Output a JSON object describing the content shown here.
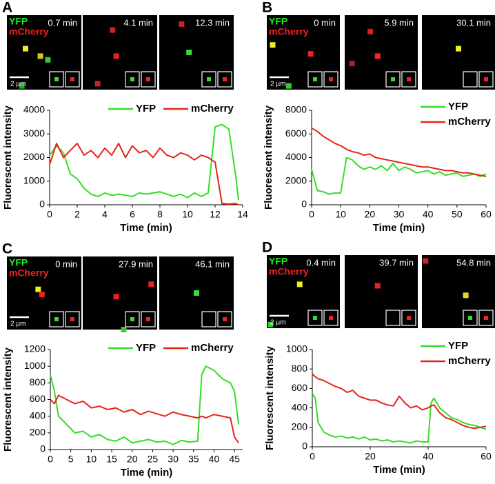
{
  "panels": [
    {
      "label": "A",
      "image_times": [
        "0.7 min",
        "4.1 min",
        "12.3 min"
      ],
      "channel_labels": [
        "YFP",
        "mCherry"
      ],
      "scale_bar": "2 µm"
    },
    {
      "label": "B",
      "image_times": [
        "0 min",
        "5.9 min",
        "30.1 min"
      ],
      "channel_labels": [
        "YFP",
        "mCherry"
      ],
      "scale_bar": "2 µm"
    },
    {
      "label": "C",
      "image_times": [
        "0 min",
        "27.9 min",
        "46.1 min"
      ],
      "channel_labels": [
        "YFP",
        "mCherry"
      ],
      "scale_bar": "2 µm"
    },
    {
      "label": "D",
      "image_times": [
        "0.4 min",
        "39.7 min",
        "54.8 min"
      ],
      "channel_labels": [
        "YFP",
        "mCherry"
      ],
      "scale_bar": "2 µm"
    }
  ],
  "chart_data": [
    {
      "type": "line",
      "xlabel": "Time (min)",
      "ylabel": "Fluorescent intensity",
      "legend": "top",
      "x": [
        0,
        0.5,
        1,
        1.5,
        2,
        2.5,
        3,
        3.5,
        4,
        4.5,
        5,
        5.5,
        6,
        6.5,
        7,
        7.5,
        8,
        8.5,
        9,
        9.5,
        10,
        10.5,
        11,
        11.5,
        12,
        12.5,
        13,
        13.5,
        13.7
      ],
      "series": [
        {
          "name": "YFP",
          "color": "#33dd22",
          "values": [
            2100,
            2500,
            2200,
            1300,
            1100,
            700,
            450,
            350,
            500,
            400,
            450,
            400,
            350,
            500,
            450,
            500,
            550,
            450,
            350,
            450,
            300,
            500,
            350,
            500,
            3300,
            3400,
            3200,
            1200,
            200
          ]
        },
        {
          "name": "mCherry",
          "color": "#e8221a",
          "values": [
            1700,
            2600,
            2000,
            2300,
            2600,
            2100,
            2300,
            2000,
            2400,
            2100,
            2600,
            2000,
            2500,
            2200,
            2300,
            2000,
            2400,
            2100,
            2000,
            2200,
            2100,
            1900,
            2100,
            2000,
            1800,
            50,
            30,
            50,
            0
          ]
        }
      ],
      "xlim": [
        0,
        14
      ],
      "xticks": [
        0,
        2,
        4,
        6,
        8,
        10,
        12,
        14
      ],
      "ylim": [
        0,
        4000
      ],
      "yticks": [
        0,
        1000,
        2000,
        3000,
        4000
      ]
    },
    {
      "type": "line",
      "xlabel": "Time (min)",
      "ylabel": "Fluorescent intensity",
      "legend": "upper right",
      "x": [
        0,
        2,
        4,
        6,
        8,
        10,
        12,
        14,
        16,
        18,
        20,
        22,
        24,
        26,
        28,
        30,
        32,
        34,
        36,
        38,
        40,
        42,
        44,
        46,
        48,
        50,
        52,
        54,
        56,
        58,
        60
      ],
      "series": [
        {
          "name": "YFP",
          "color": "#33dd22",
          "values": [
            3000,
            1200,
            1100,
            900,
            1000,
            1000,
            4000,
            3800,
            3300,
            3000,
            3200,
            3000,
            3300,
            2900,
            3500,
            2900,
            3200,
            3000,
            2700,
            2800,
            2900,
            2600,
            2800,
            2500,
            2600,
            2700,
            2400,
            2500,
            2600,
            2400,
            2600
          ]
        },
        {
          "name": "mCherry",
          "color": "#e8221a",
          "values": [
            6500,
            6200,
            5800,
            5500,
            5200,
            5000,
            4700,
            4500,
            4400,
            4200,
            4300,
            4000,
            3900,
            3800,
            3700,
            3600,
            3500,
            3400,
            3300,
            3200,
            3200,
            3100,
            3000,
            2900,
            2900,
            2800,
            2700,
            2700,
            2600,
            2500,
            2400
          ]
        }
      ],
      "xlim": [
        0,
        60
      ],
      "xticks": [
        0,
        10,
        20,
        30,
        40,
        50,
        60
      ],
      "ylim": [
        0,
        8000
      ],
      "yticks": [
        0,
        2000,
        4000,
        6000,
        8000
      ]
    },
    {
      "type": "line",
      "xlabel": "Time (min)",
      "ylabel": "Fluorescent intensity",
      "legend": "top",
      "x": [
        0,
        1,
        2,
        4,
        6,
        8,
        10,
        12,
        14,
        16,
        18,
        20,
        22,
        24,
        26,
        28,
        30,
        32,
        34,
        36,
        37,
        38,
        40,
        42,
        44,
        45,
        46
      ],
      "series": [
        {
          "name": "YFP",
          "color": "#33dd22",
          "values": [
            900,
            700,
            400,
            300,
            200,
            220,
            150,
            180,
            120,
            100,
            150,
            80,
            100,
            120,
            90,
            100,
            60,
            110,
            90,
            100,
            900,
            1000,
            950,
            850,
            800,
            700,
            300
          ]
        },
        {
          "name": "mCherry",
          "color": "#e8221a",
          "values": [
            600,
            550,
            650,
            600,
            550,
            580,
            500,
            520,
            480,
            500,
            450,
            480,
            420,
            460,
            430,
            400,
            450,
            420,
            400,
            380,
            400,
            380,
            420,
            400,
            380,
            150,
            80
          ]
        }
      ],
      "xlim": [
        0,
        47
      ],
      "xticks": [
        0,
        5,
        10,
        15,
        20,
        25,
        30,
        35,
        40,
        45
      ],
      "ylim": [
        0,
        1200
      ],
      "yticks": [
        0,
        200,
        400,
        600,
        800,
        1000,
        1200
      ]
    },
    {
      "type": "line",
      "xlabel": "Time (min)",
      "ylabel": "Fluorescent intensity",
      "legend": "upper right",
      "x": [
        0,
        1,
        2,
        4,
        6,
        8,
        10,
        12,
        14,
        16,
        18,
        20,
        22,
        24,
        26,
        28,
        30,
        32,
        34,
        36,
        38,
        40,
        41,
        42,
        44,
        46,
        48,
        50,
        52,
        54,
        56,
        58,
        60
      ],
      "series": [
        {
          "name": "YFP",
          "color": "#33dd22",
          "values": [
            550,
            500,
            250,
            150,
            120,
            100,
            110,
            90,
            100,
            80,
            100,
            70,
            80,
            60,
            70,
            50,
            60,
            50,
            40,
            60,
            50,
            50,
            450,
            500,
            400,
            350,
            300,
            280,
            250,
            230,
            220,
            200,
            180
          ]
        },
        {
          "name": "mCherry",
          "color": "#e8221a",
          "values": [
            750,
            720,
            700,
            680,
            650,
            620,
            600,
            560,
            580,
            520,
            500,
            480,
            480,
            450,
            430,
            420,
            520,
            450,
            400,
            420,
            380,
            400,
            420,
            430,
            350,
            300,
            280,
            250,
            220,
            200,
            190,
            200,
            210
          ]
        }
      ],
      "xlim": [
        0,
        60
      ],
      "xticks": [
        0,
        20,
        40,
        60
      ],
      "ylim": [
        0,
        1000
      ],
      "yticks": [
        0,
        200,
        400,
        600,
        800,
        1000
      ]
    }
  ]
}
